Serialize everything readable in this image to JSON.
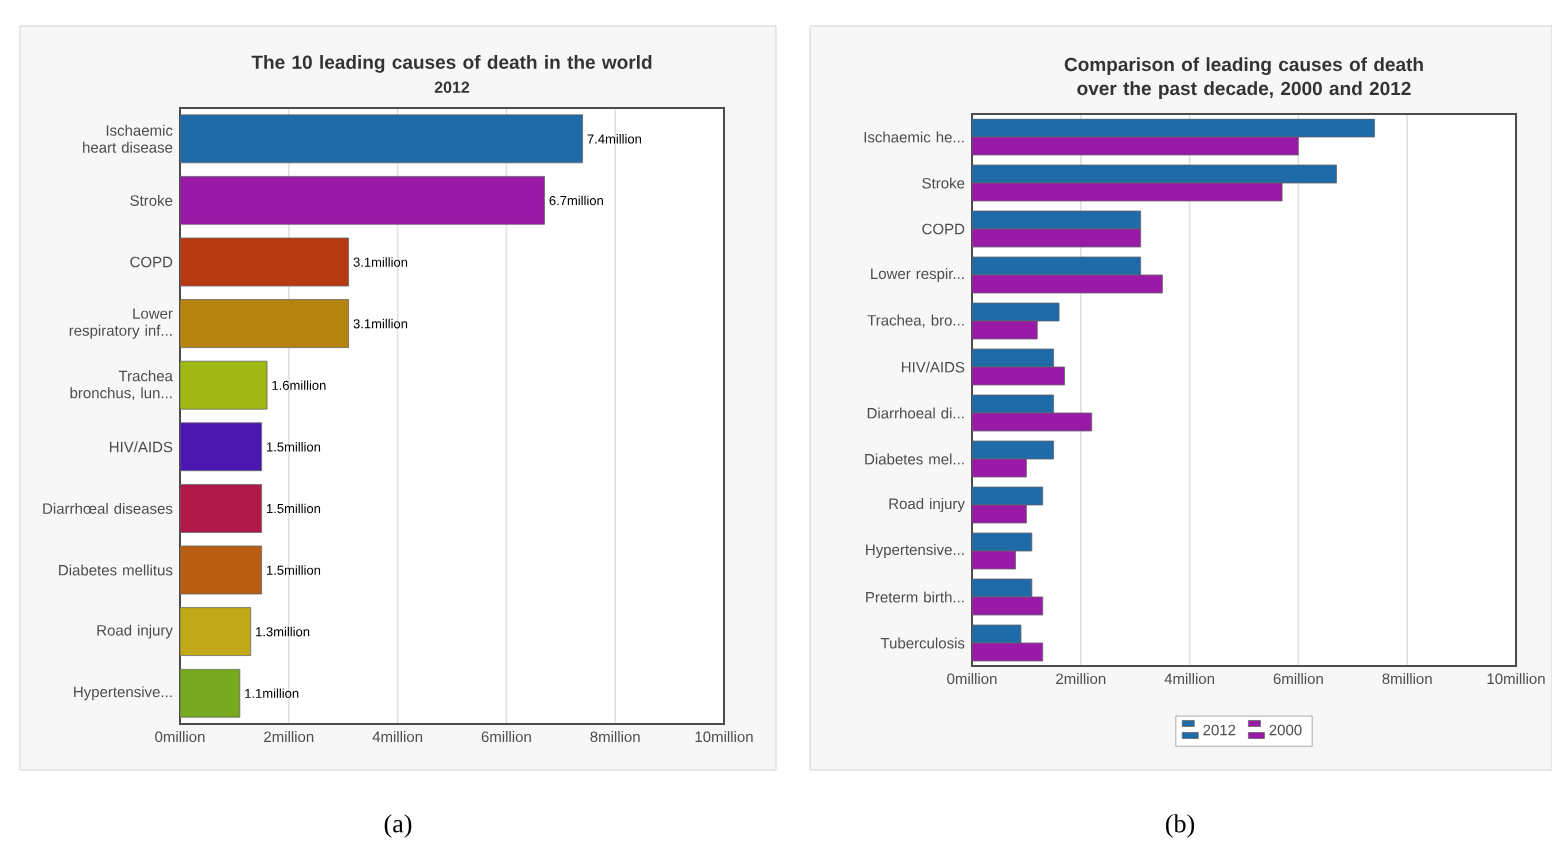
{
  "chart_data": [
    {
      "type": "bar",
      "orientation": "horizontal",
      "title": "The 10 leading causes of death in the world",
      "subtitle": "2012",
      "categories": [
        "Ischaemic heart disease",
        "Stroke",
        "COPD",
        "Lower respiratory inf...",
        "Trachea bronchus, lun...",
        "HIV/AIDS",
        "Diarrhœal diseases",
        "Diabetes mellitus",
        "Road injury",
        "Hypertensive..."
      ],
      "values": [
        7.4,
        6.7,
        3.1,
        3.1,
        1.6,
        1.5,
        1.5,
        1.5,
        1.3,
        1.1
      ],
      "value_labels": [
        "7.4million",
        "6.7million",
        "3.1million",
        "3.1million",
        "1.6million",
        "1.5million",
        "1.5million",
        "1.5million",
        "1.3million",
        "1.1million"
      ],
      "colors": [
        "#1f6aa8",
        "#9a1aa8",
        "#b83a12",
        "#b5840f",
        "#a0b814",
        "#4a18b0",
        "#b01848",
        "#b85e12",
        "#c0a818",
        "#78a820"
      ],
      "xlim": [
        0,
        10
      ],
      "xticks": [
        {
          "value": 0,
          "label": "0million"
        },
        {
          "value": 2,
          "label": "2million"
        },
        {
          "value": 4,
          "label": "4million"
        },
        {
          "value": 6,
          "label": "6million"
        },
        {
          "value": 8,
          "label": "8million"
        },
        {
          "value": 10,
          "label": "10million"
        }
      ],
      "grid": "x",
      "annotations": [
        "(a)"
      ]
    },
    {
      "type": "bar",
      "orientation": "horizontal",
      "title": "Comparison of leading causes of death over the past decade, 2000 and 2012",
      "categories": [
        "Ischaemic he...",
        "Stroke",
        "COPD",
        "Lower respir...",
        "Trachea, bro...",
        "HIV/AIDS",
        "Diarrhoeal di...",
        "Diabetes mel...",
        "Road injury",
        "Hypertensive...",
        "Preterm birth...",
        "Tuberculosis"
      ],
      "series": [
        {
          "name": "2012",
          "color": "#1f6aa8",
          "values": [
            7.4,
            6.7,
            3.1,
            3.1,
            1.6,
            1.5,
            1.5,
            1.5,
            1.3,
            1.1,
            1.1,
            0.9
          ]
        },
        {
          "name": "2000",
          "color": "#9a1aa8",
          "values": [
            6.0,
            5.7,
            3.1,
            3.5,
            1.2,
            1.7,
            2.2,
            1.0,
            1.0,
            0.8,
            1.3,
            1.3
          ]
        }
      ],
      "xlim": [
        0,
        10
      ],
      "xticks": [
        {
          "value": 0,
          "label": "0million"
        },
        {
          "value": 2,
          "label": "2million"
        },
        {
          "value": 4,
          "label": "4million"
        },
        {
          "value": 6,
          "label": "6million"
        },
        {
          "value": 8,
          "label": "8million"
        },
        {
          "value": 10,
          "label": "10million"
        }
      ],
      "grid": "x",
      "legend": "bottom",
      "annotations": [
        "(b)"
      ]
    }
  ]
}
